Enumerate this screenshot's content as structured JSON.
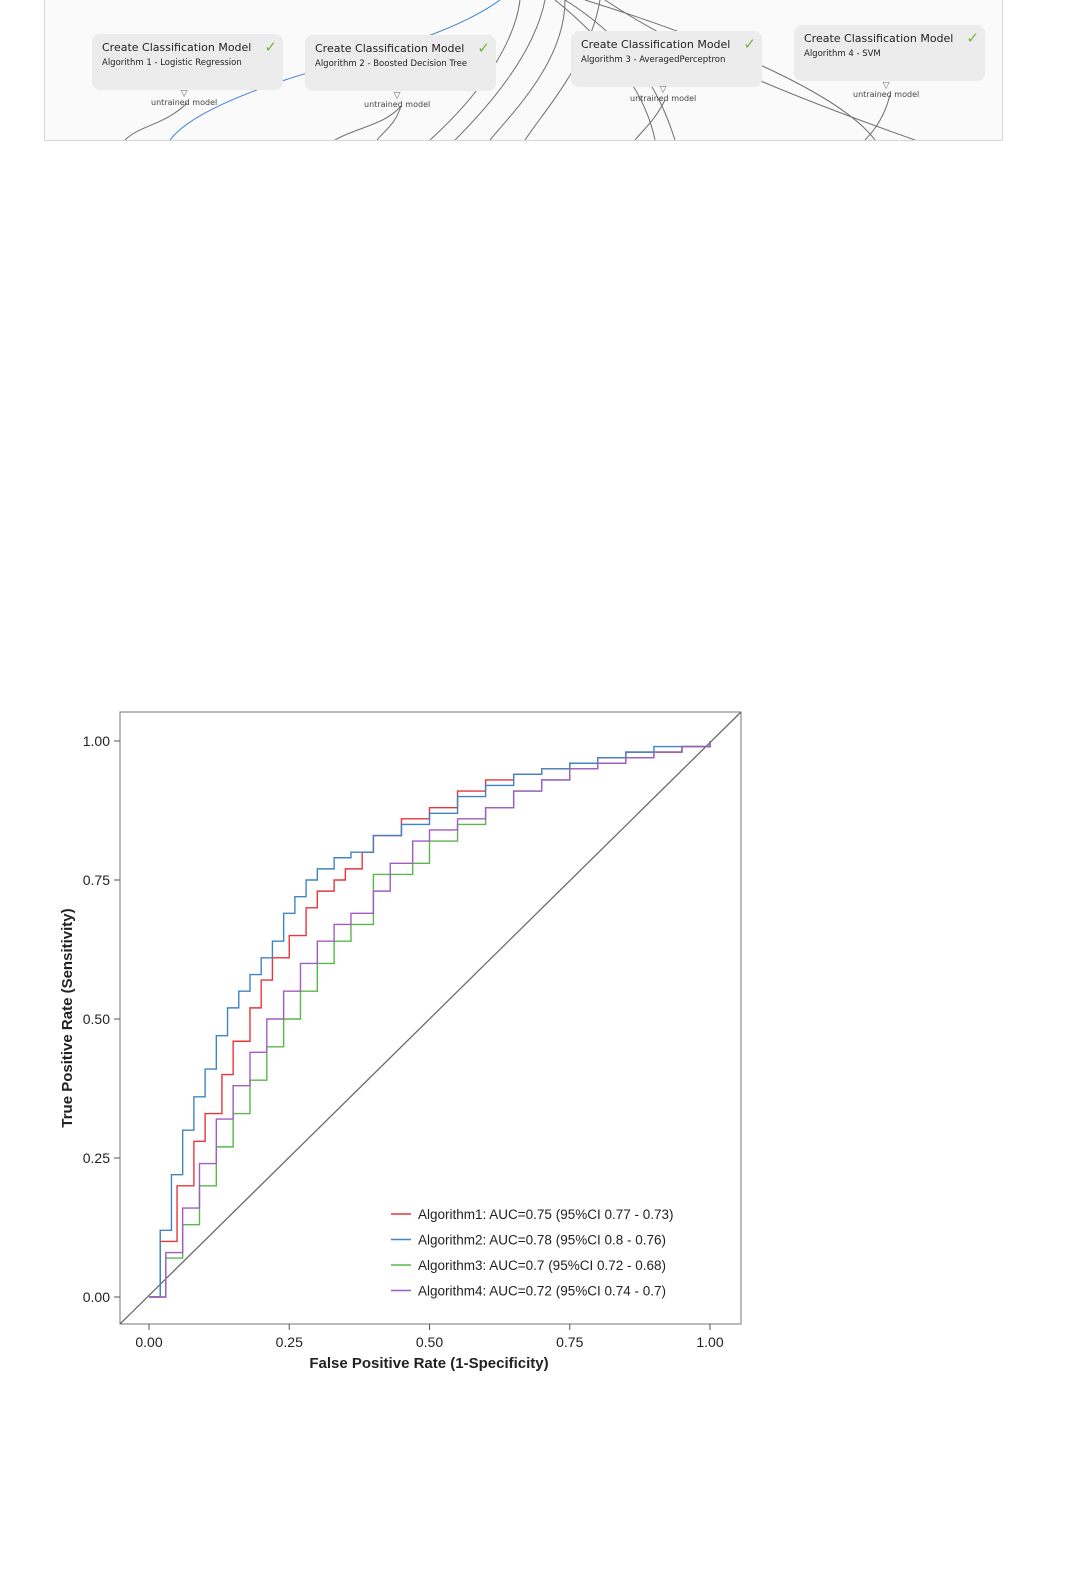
{
  "pipeline": {
    "nodes": [
      {
        "title": "Create Classification Model",
        "subtitle": "Algorithm 1 - Logistic Regression",
        "port": "untrained model",
        "status_icon": "check-icon"
      },
      {
        "title": "Create Classification Model",
        "subtitle": "Algorithm 2 - Boosted Decision Tree",
        "port": "untrained model",
        "status_icon": "check-icon"
      },
      {
        "title": "Create Classification Model",
        "subtitle": "Algorithm 3 - AveragedPerceptron",
        "port": "untrained model",
        "status_icon": "check-icon"
      },
      {
        "title": "Create Classification Model",
        "subtitle": "Algorithm 4 - SVM",
        "port": "untrained model",
        "status_icon": "check-icon"
      }
    ],
    "check_glyph": "✓",
    "port_glyph": "▽",
    "colors": {
      "node_bg": "#ececec",
      "check": "#7cb342",
      "wire": "#6f6f6f",
      "wire_selected": "#3a7fd5"
    }
  },
  "chart_data": {
    "type": "line",
    "title": "",
    "xlabel": "False Positive Rate (1-Specificity)",
    "ylabel": "True Positive Rate (Sensitivity)",
    "xlim": [
      0,
      1
    ],
    "ylim": [
      0,
      1
    ],
    "xticks": [
      "0.00",
      "0.25",
      "0.50",
      "0.75",
      "1.00"
    ],
    "yticks": [
      "0.00",
      "0.25",
      "0.50",
      "0.75",
      "1.00"
    ],
    "grid": false,
    "legend_position": "bottom-right",
    "series": [
      {
        "name": "Algorithm1: AUC=0.75 (95%CI 0.77 - 0.73)",
        "color": "#e8353b",
        "x": [
          0,
          0.02,
          0.05,
          0.08,
          0.1,
          0.13,
          0.15,
          0.18,
          0.2,
          0.22,
          0.25,
          0.28,
          0.3,
          0.33,
          0.35,
          0.38,
          0.4,
          0.45,
          0.5,
          0.55,
          0.6,
          0.65,
          0.7,
          0.75,
          0.8,
          0.85,
          0.9,
          0.95,
          1.0
        ],
        "y": [
          0,
          0.1,
          0.2,
          0.28,
          0.33,
          0.4,
          0.46,
          0.52,
          0.57,
          0.61,
          0.65,
          0.7,
          0.73,
          0.75,
          0.77,
          0.8,
          0.83,
          0.86,
          0.88,
          0.91,
          0.93,
          0.94,
          0.95,
          0.96,
          0.97,
          0.98,
          0.98,
          0.99,
          1.0
        ]
      },
      {
        "name": "Algorithm2: AUC=0.78 (95%CI 0.8 - 0.76)",
        "color": "#3f85c4",
        "x": [
          0,
          0.02,
          0.04,
          0.06,
          0.08,
          0.1,
          0.12,
          0.14,
          0.16,
          0.18,
          0.2,
          0.22,
          0.24,
          0.26,
          0.28,
          0.3,
          0.33,
          0.36,
          0.4,
          0.45,
          0.5,
          0.55,
          0.6,
          0.65,
          0.7,
          0.75,
          0.8,
          0.85,
          0.9,
          0.95,
          1.0
        ],
        "y": [
          0,
          0.12,
          0.22,
          0.3,
          0.36,
          0.41,
          0.47,
          0.52,
          0.55,
          0.58,
          0.61,
          0.64,
          0.69,
          0.72,
          0.75,
          0.77,
          0.79,
          0.8,
          0.83,
          0.85,
          0.87,
          0.9,
          0.92,
          0.94,
          0.95,
          0.96,
          0.97,
          0.98,
          0.99,
          0.99,
          1.0
        ]
      },
      {
        "name": "Algorithm3: AUC=0.7 (95%CI 0.72 - 0.68)",
        "color": "#59b84a",
        "x": [
          0,
          0.03,
          0.06,
          0.09,
          0.12,
          0.15,
          0.18,
          0.21,
          0.24,
          0.27,
          0.3,
          0.33,
          0.36,
          0.4,
          0.43,
          0.47,
          0.5,
          0.55,
          0.6,
          0.65,
          0.7,
          0.75,
          0.8,
          0.85,
          0.9,
          0.95,
          1.0
        ],
        "y": [
          0,
          0.07,
          0.13,
          0.2,
          0.27,
          0.33,
          0.39,
          0.45,
          0.5,
          0.55,
          0.6,
          0.64,
          0.67,
          0.76,
          0.76,
          0.78,
          0.82,
          0.85,
          0.88,
          0.91,
          0.93,
          0.95,
          0.96,
          0.97,
          0.98,
          0.99,
          1.0
        ]
      },
      {
        "name": "Algorithm4: AUC=0.72 (95%CI 0.74 - 0.7)",
        "color": "#a35bc4",
        "x": [
          0,
          0.03,
          0.06,
          0.09,
          0.12,
          0.15,
          0.18,
          0.21,
          0.24,
          0.27,
          0.3,
          0.33,
          0.36,
          0.4,
          0.43,
          0.47,
          0.5,
          0.55,
          0.6,
          0.65,
          0.7,
          0.75,
          0.8,
          0.85,
          0.9,
          0.95,
          1.0
        ],
        "y": [
          0,
          0.08,
          0.16,
          0.24,
          0.32,
          0.38,
          0.44,
          0.5,
          0.55,
          0.6,
          0.64,
          0.67,
          0.69,
          0.73,
          0.78,
          0.82,
          0.84,
          0.86,
          0.88,
          0.91,
          0.93,
          0.95,
          0.96,
          0.97,
          0.98,
          0.99,
          1.0
        ]
      }
    ],
    "reference_line": {
      "x": [
        0,
        1
      ],
      "y": [
        0,
        1
      ],
      "color": "#6b6b6b"
    }
  }
}
